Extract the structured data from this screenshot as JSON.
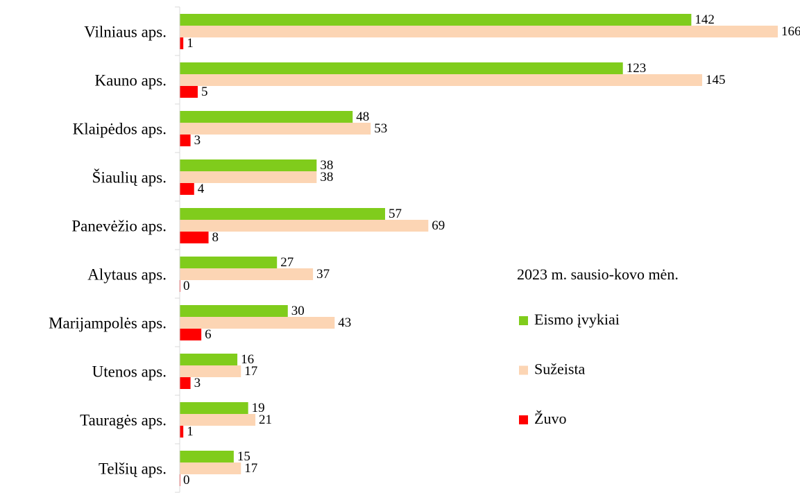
{
  "chart_data": {
    "type": "hbar",
    "categories": [
      "Vilniaus aps.",
      "Kauno aps.",
      "Klaipėdos aps.",
      "Šiaulių aps.",
      "Panevėžio aps.",
      "Alytaus aps.",
      "Marijampolės aps.",
      "Utenos aps.",
      "Tauragės aps.",
      "Telšių aps."
    ],
    "legend_title": "2023 m. sausio-kovo mėn.",
    "legend": "right",
    "series": [
      {
        "name": "Eismo įvykiai",
        "color": "#80cc1c",
        "values": [
          142,
          123,
          48,
          38,
          57,
          27,
          30,
          16,
          19,
          15
        ]
      },
      {
        "name": "Sužeista",
        "color": "#fcd5b4",
        "values": [
          166,
          145,
          53,
          38,
          69,
          37,
          43,
          17,
          21,
          17
        ]
      },
      {
        "name": "Žuvo",
        "color": "#ff0000",
        "values": [
          1,
          5,
          3,
          4,
          8,
          0,
          6,
          3,
          1,
          0
        ]
      }
    ]
  }
}
